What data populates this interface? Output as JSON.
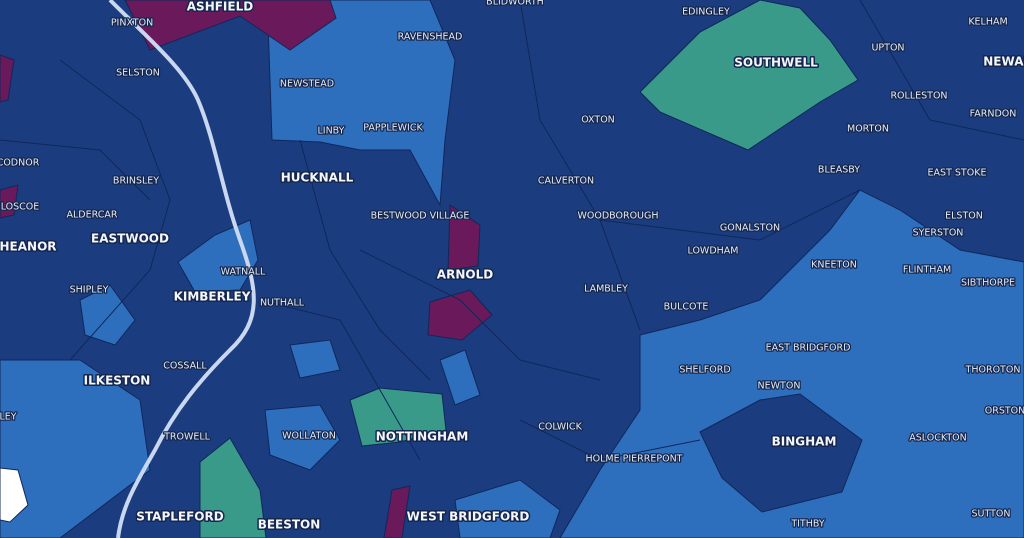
{
  "labels": {
    "major": [
      "ASHFIELD",
      "SOUTHWELL",
      "NEWAR",
      "HUCKNALL",
      "EASTWOOD",
      "HEANOR",
      "ARNOLD",
      "KIMBERLEY",
      "ILKESTON",
      "NOTTINGHAM",
      "BINGHAM",
      "STAPLEFORD",
      "BEESTON",
      "WEST BRIDGFORD"
    ],
    "minor": [
      "BLIDWORTH",
      "EDINGLEY",
      "KELHAM",
      "RAVENSHEAD",
      "UPTON",
      "PINXTON",
      "SELSTON",
      "NEWSTEAD",
      "ROLLESTON",
      "FARNDON",
      "OXTON",
      "LINBY",
      "PAPPLEWICK",
      "MORTON",
      "CODNOR",
      "BLEASBY",
      "CALVERTON",
      "BRINSLEY",
      "EAST STOKE",
      "LOSCOE",
      "ALDERCAR",
      "BESTWOOD VILLAGE",
      "WOODBOROUGH",
      "ELSTON",
      "GONALSTON",
      "SYERSTON",
      "LOWDHAM",
      "KNEETON",
      "WATNALL",
      "FLINTHAM",
      "SIBTHORPE",
      "SHIPLEY",
      "LAMBLEY",
      "NUTHALL",
      "BULCOTE",
      "EAST BRIDGFORD",
      "COSSALL",
      "SHELFORD",
      "THOROTON",
      "NEWTON",
      "ORSTON",
      "LEY",
      "COLWICK",
      "TROWELL",
      "WOLLATON",
      "ASLOCKTON",
      "HOLME PIERREPONT",
      "TITHBY",
      "SUTTON"
    ]
  }
}
